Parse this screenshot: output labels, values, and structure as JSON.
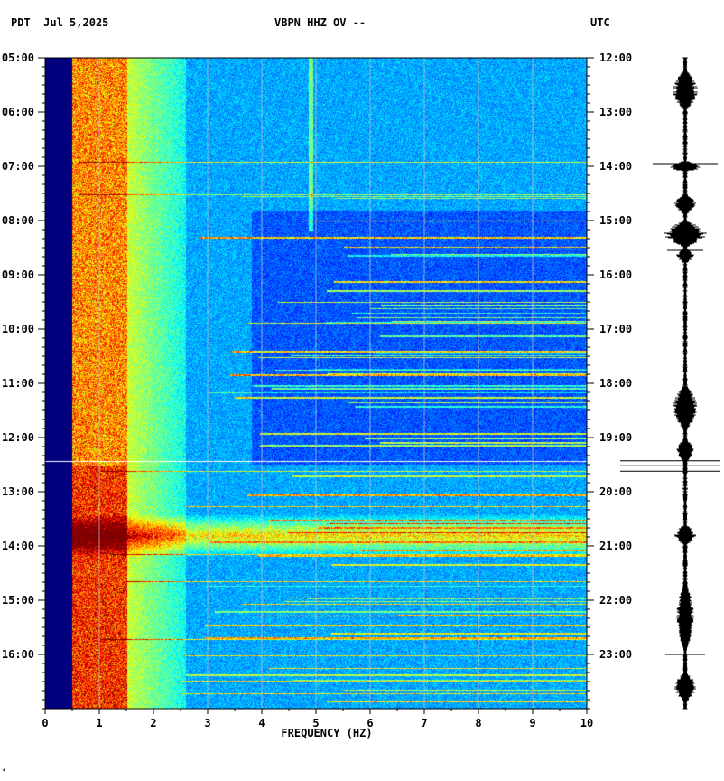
{
  "header": {
    "left_tz": "PDT",
    "date": "Jul 5,2025",
    "station": "VBPN HHZ OV --",
    "right_tz": "UTC"
  },
  "chart_data": {
    "type": "heatmap",
    "xlabel": "FREQUENCY (HZ)",
    "xlim": [
      0,
      10
    ],
    "x_ticks": [
      "0",
      "1",
      "2",
      "3",
      "4",
      "5",
      "6",
      "7",
      "8",
      "9",
      "10"
    ],
    "y_left_ticks": [
      "05:00",
      "06:00",
      "07:00",
      "08:00",
      "09:00",
      "10:00",
      "11:00",
      "12:00",
      "13:00",
      "14:00",
      "15:00",
      "16:00"
    ],
    "y_right_ticks": [
      "12:00",
      "13:00",
      "14:00",
      "15:00",
      "16:00",
      "17:00",
      "18:00",
      "19:00",
      "20:00",
      "21:00",
      "22:00",
      "23:00"
    ],
    "ylim_hours_pdt": [
      5,
      17
    ],
    "grid": true,
    "colormap": [
      "#00007f",
      "#0000ff",
      "#0080ff",
      "#00ffff",
      "#80ff80",
      "#ffff00",
      "#ff8000",
      "#ff0000",
      "#7f0000"
    ],
    "noise_band_hz": [
      0.5,
      1.5
    ],
    "broadband_event_hours_pdt": [
      13.4,
      14.2
    ],
    "data_gap_hz": [
      0,
      0.5
    ],
    "cursor_line_hour_pdt": 12.43,
    "seismogram_trace_color": "#000000"
  }
}
